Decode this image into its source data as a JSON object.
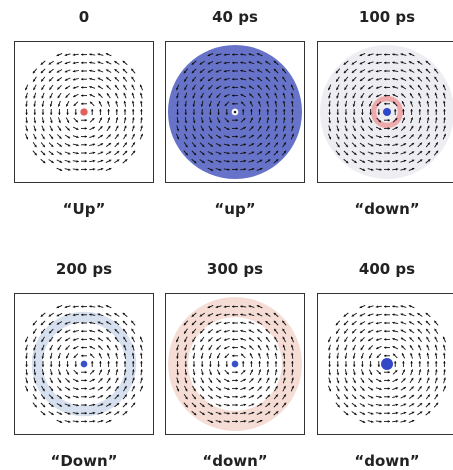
{
  "panels": [
    {
      "time": "0",
      "state": "“Up”",
      "core": "#e06060",
      "core_r": 0.055,
      "fill": null,
      "rings": []
    },
    {
      "time": "40 ps",
      "state": "“up”",
      "core": "#ffffff",
      "core_r": 0.05,
      "fill": "#6673c8",
      "rings": []
    },
    {
      "time": "100 ps",
      "state": "“down”",
      "core": "#2c48c8",
      "core_r": 0.06,
      "fill": "#eeeef2",
      "rings": [
        {
          "r": 0.2,
          "w": 0.08,
          "c": "#eeaaaa"
        }
      ]
    },
    {
      "time": "200 ps",
      "state": "“Down”",
      "core": "#3850c8",
      "core_r": 0.05,
      "fill": null,
      "rings": [
        {
          "r": 0.7,
          "w": 0.16,
          "c": "#d6e0ee"
        }
      ]
    },
    {
      "time": "300 ps",
      "state": "“down”",
      "core": "#3850c8",
      "core_r": 0.05,
      "fill": null,
      "rings": [
        {
          "r": 0.85,
          "w": 0.3,
          "c": "#f5dcd4"
        }
      ]
    },
    {
      "time": "400 ps",
      "state": "“down”",
      "core": "#3248c8",
      "core_r": 0.09,
      "fill": null,
      "rings": []
    }
  ]
}
